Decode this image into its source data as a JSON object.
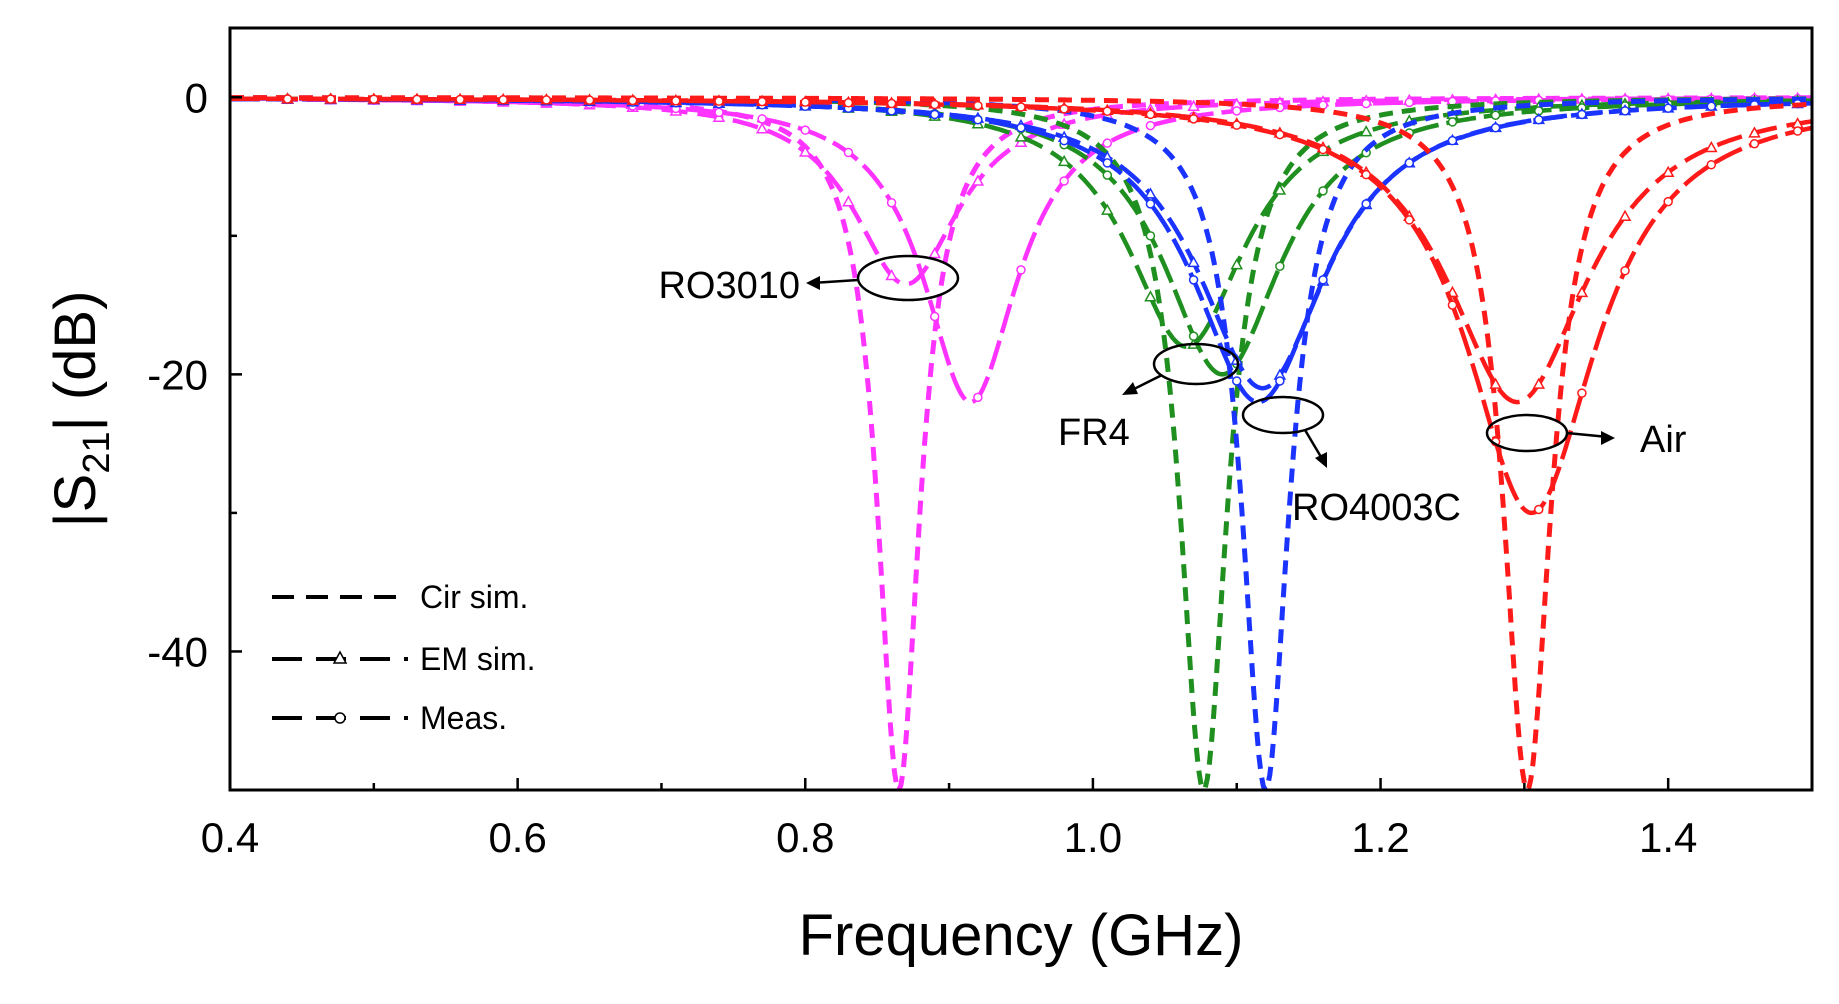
{
  "chart_data": {
    "type": "line",
    "xlabel": "Frequency (GHz)",
    "ylabel_main": "|S",
    "ylabel_sub": "21",
    "ylabel_tail": "| (dB)",
    "xlim": [
      0.4,
      1.5
    ],
    "ylim": [
      -50,
      5
    ],
    "xticks": [
      0.4,
      0.6,
      0.8,
      1.0,
      1.2,
      1.4
    ],
    "xtick_labels": [
      "0.4",
      "0.6",
      "0.8",
      "1.0",
      "1.2",
      "1.4"
    ],
    "yticks": [
      0,
      -20,
      -40
    ],
    "ytick_labels": [
      "0",
      "-20",
      "-40"
    ],
    "legend": {
      "position": "bottom-left",
      "entries": [
        {
          "label": "Cir sim.",
          "style": "dash"
        },
        {
          "label": "EM sim.",
          "style": "longdash-triangle"
        },
        {
          "label": "Meas.",
          "style": "longdash-circle"
        }
      ]
    },
    "substrates": [
      {
        "name": "RO3010",
        "color": "#ff33ff",
        "series": [
          {
            "kind": "Cir sim.",
            "f0": 0.865,
            "depth": -50,
            "w": 0.018
          },
          {
            "kind": "EM sim.",
            "f0": 0.87,
            "depth": -13.5,
            "w": 0.045
          },
          {
            "kind": "Meas.",
            "f0": 0.915,
            "depth": -22,
            "w": 0.04
          }
        ]
      },
      {
        "name": "FR4",
        "color": "#1f8f1f",
        "series": [
          {
            "kind": "Cir sim.",
            "f0": 1.077,
            "depth": -50,
            "w": 0.02
          },
          {
            "kind": "EM sim.",
            "f0": 1.065,
            "depth": -18,
            "w": 0.05
          },
          {
            "kind": "Meas.",
            "f0": 1.09,
            "depth": -20,
            "w": 0.05
          }
        ]
      },
      {
        "name": "RO4003C",
        "color": "#1a33ff",
        "series": [
          {
            "kind": "Cir sim.",
            "f0": 1.12,
            "depth": -50,
            "w": 0.02
          },
          {
            "kind": "EM sim.",
            "f0": 1.118,
            "depth": -21,
            "w": 0.055
          },
          {
            "kind": "Meas.",
            "f0": 1.115,
            "depth": -22,
            "w": 0.055
          }
        ]
      },
      {
        "name": "Air",
        "color": "#ff1a1a",
        "series": [
          {
            "kind": "Cir sim.",
            "f0": 1.302,
            "depth": -50,
            "w": 0.02
          },
          {
            "kind": "EM sim.",
            "f0": 1.295,
            "depth": -22,
            "w": 0.06
          },
          {
            "kind": "Meas.",
            "f0": 1.305,
            "depth": -30,
            "w": 0.055
          }
        ]
      }
    ],
    "annotations": [
      {
        "text": "RO3010",
        "target": "RO3010"
      },
      {
        "text": "FR4",
        "target": "FR4"
      },
      {
        "text": "RO4003C",
        "target": "RO4003C"
      },
      {
        "text": "Air",
        "target": "Air"
      }
    ]
  }
}
